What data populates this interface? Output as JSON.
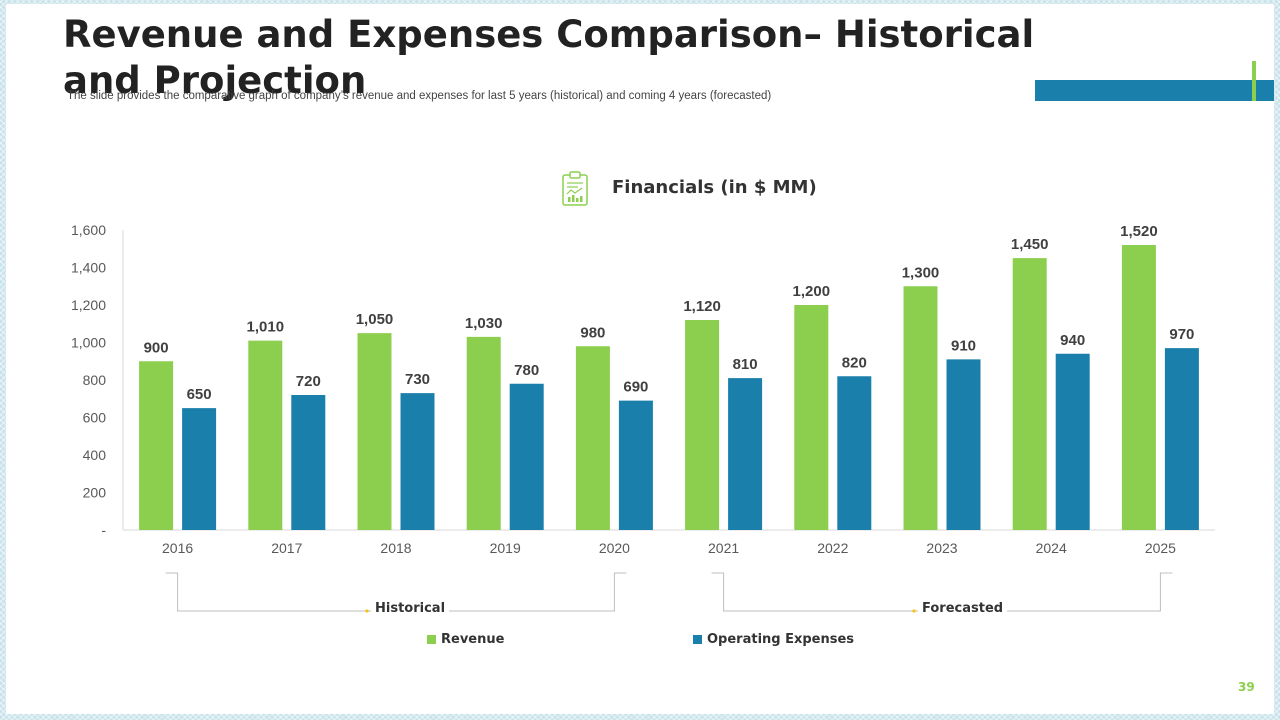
{
  "slide": {
    "title": "Revenue and Expenses Comparison– Historical and Projection",
    "subtitle": "The slide provides the comparative graph of company’s revenue and expenses for last 5 years (historical) and coming 4 years (forecasted)",
    "page_number": "39"
  },
  "icon": "financial-report-icon",
  "colors": {
    "revenue": "#8ccf4e",
    "expenses": "#1b7fab",
    "accent_blue": "#1b7fab",
    "accent_green": "#8ccf4e"
  },
  "periods": {
    "historical": "Historical",
    "forecasted": "Forecasted"
  },
  "chart_data": {
    "type": "bar",
    "title": "Financials  (in $ MM)",
    "categories": [
      "2016",
      "2017",
      "2018",
      "2019",
      "2020",
      "2021",
      "2022",
      "2023",
      "2024",
      "2025"
    ],
    "series": [
      {
        "name": "Revenue",
        "values": [
          900,
          1010,
          1050,
          1030,
          980,
          1120,
          1200,
          1300,
          1450,
          1520
        ],
        "labels": [
          "900",
          "1,010",
          "1,050",
          "1,030",
          "980",
          "1,120",
          "1,200",
          "1,300",
          "1,450",
          "1,520"
        ]
      },
      {
        "name": "Operating Expenses",
        "values": [
          650,
          720,
          730,
          780,
          690,
          810,
          820,
          910,
          940,
          970
        ],
        "labels": [
          "650",
          "720",
          "730",
          "780",
          "690",
          "810",
          "820",
          "910",
          "940",
          "970"
        ]
      }
    ],
    "yticks": [
      0,
      200,
      400,
      600,
      800,
      1000,
      1200,
      1400,
      1600
    ],
    "ytick_labels": [
      "-",
      "200",
      "400",
      "600",
      "800",
      "1,000",
      "1,200",
      "1,400",
      "1,600"
    ],
    "ylim": [
      0,
      1600
    ],
    "xlabel": "",
    "ylabel": "",
    "grid": false,
    "legend_position": "bottom"
  }
}
